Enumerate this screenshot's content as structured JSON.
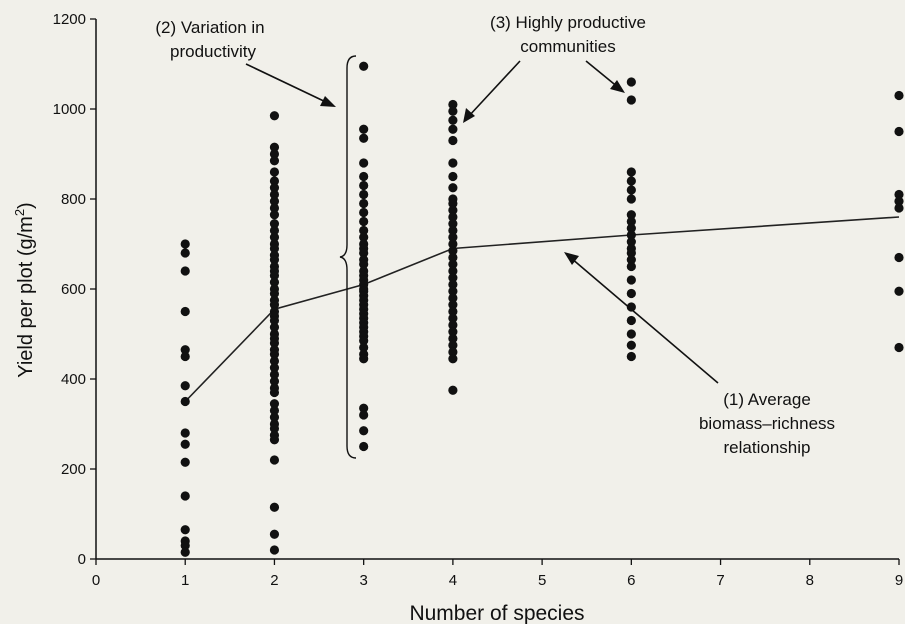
{
  "chart_data": {
    "type": "scatter",
    "title": "",
    "xlabel": "Number of species",
    "ylabel_main": "Yield per plot (g/m",
    "ylabel_sup": "2",
    "ylabel_close": ")",
    "xlim": [
      0,
      9
    ],
    "ylim": [
      0,
      1200
    ],
    "xticks": [
      0,
      1,
      2,
      3,
      4,
      5,
      6,
      7,
      8,
      9
    ],
    "yticks": [
      0,
      200,
      400,
      600,
      800,
      1000,
      1200
    ],
    "grid": false,
    "points": [
      {
        "x": 1,
        "ys": [
          700,
          680,
          640,
          550,
          465,
          450,
          385,
          350,
          280,
          255,
          215,
          140,
          65,
          40,
          30,
          15
        ]
      },
      {
        "x": 2,
        "ys": [
          985,
          915,
          900,
          885,
          860,
          840,
          825,
          810,
          795,
          780,
          765,
          745,
          730,
          715,
          700,
          690,
          675,
          665,
          650,
          640,
          630,
          615,
          600,
          590,
          575,
          565,
          550,
          540,
          530,
          515,
          500,
          490,
          480,
          465,
          455,
          440,
          425,
          410,
          395,
          380,
          370,
          345,
          330,
          315,
          300,
          290,
          275,
          265,
          220,
          115,
          55,
          20
        ]
      },
      {
        "x": 3,
        "ys": [
          1095,
          955,
          935,
          880,
          850,
          830,
          810,
          790,
          770,
          750,
          730,
          715,
          700,
          690,
          680,
          665,
          655,
          640,
          630,
          620,
          610,
          600,
          595,
          585,
          575,
          565,
          555,
          545,
          535,
          525,
          515,
          505,
          495,
          485,
          470,
          455,
          445,
          335,
          320,
          285,
          250
        ]
      },
      {
        "x": 4,
        "ys": [
          1010,
          995,
          975,
          955,
          930,
          880,
          850,
          825,
          800,
          790,
          775,
          760,
          745,
          730,
          715,
          700,
          685,
          670,
          655,
          640,
          625,
          610,
          595,
          580,
          565,
          550,
          535,
          520,
          505,
          490,
          475,
          460,
          445,
          375
        ]
      },
      {
        "x": 6,
        "ys": [
          1060,
          1020,
          860,
          840,
          820,
          800,
          765,
          750,
          735,
          720,
          705,
          690,
          680,
          665,
          650,
          620,
          590,
          560,
          530,
          500,
          475,
          450
        ]
      },
      {
        "x": 9,
        "ys": [
          1030,
          950,
          810,
          795,
          780,
          670,
          595,
          470
        ]
      }
    ],
    "average_line": {
      "x": [
        1,
        2,
        3,
        4,
        6,
        9
      ],
      "y": [
        350,
        555,
        610,
        690,
        720,
        760
      ]
    },
    "annotations": {
      "variation_l1": "(2) Variation in",
      "variation_l2": "productivity",
      "productive_l1": "(3) Highly productive",
      "productive_l2": "communities",
      "average_l1": "(1) Average",
      "average_l2": "biomass–richness",
      "average_l3": "relationship"
    }
  }
}
